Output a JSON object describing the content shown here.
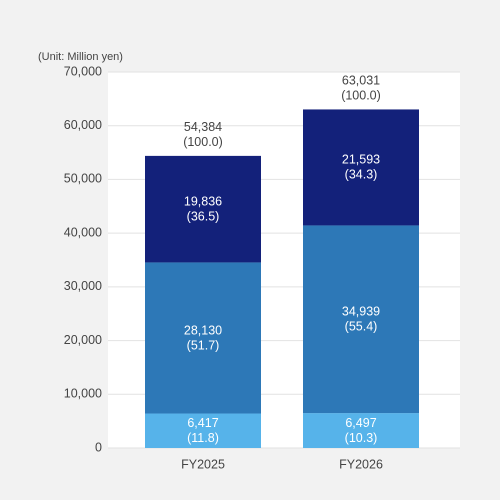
{
  "chart_data": {
    "type": "stacked_bar",
    "unit_label": "(Unit: Million yen)",
    "categories": [
      "FY2025",
      "FY2026"
    ],
    "series": [
      {
        "color": "#56b3ea",
        "values": [
          6417,
          6497
        ],
        "value_labels": [
          "6,417",
          "6,497"
        ],
        "shares": [
          11.8,
          10.3
        ],
        "share_labels": [
          "(11.8)",
          "(10.3)"
        ]
      },
      {
        "color": "#2d78b7",
        "values": [
          28130,
          34939
        ],
        "value_labels": [
          "28,130",
          "34,939"
        ],
        "shares": [
          51.7,
          55.4
        ],
        "share_labels": [
          "(51.7)",
          "(55.4)"
        ]
      },
      {
        "color": "#13217a",
        "values": [
          19836,
          21593
        ],
        "value_labels": [
          "19,836",
          "21,593"
        ],
        "shares": [
          36.5,
          34.3
        ],
        "share_labels": [
          "(36.5)",
          "(34.3)"
        ]
      }
    ],
    "totals": [
      54384,
      63031
    ],
    "total_labels": [
      "54,384",
      "63,031"
    ],
    "total_shares": [
      100.0,
      100.0
    ],
    "total_share_labels": [
      "(100.0)",
      "(100.0)"
    ],
    "ylim": [
      0,
      70000
    ],
    "yticks": [
      0,
      {
        "value": 10000,
        "label": "10,000"
      },
      {
        "value": 20000,
        "label": "20,000"
      },
      {
        "value": 30000,
        "label": "30,000"
      },
      {
        "value": 40000,
        "label": "40,000"
      },
      {
        "value": 50000,
        "label": "50,000"
      },
      {
        "value": 60000,
        "label": "60,000"
      },
      {
        "value": 70000,
        "label": "70,000"
      }
    ],
    "grid": true
  }
}
